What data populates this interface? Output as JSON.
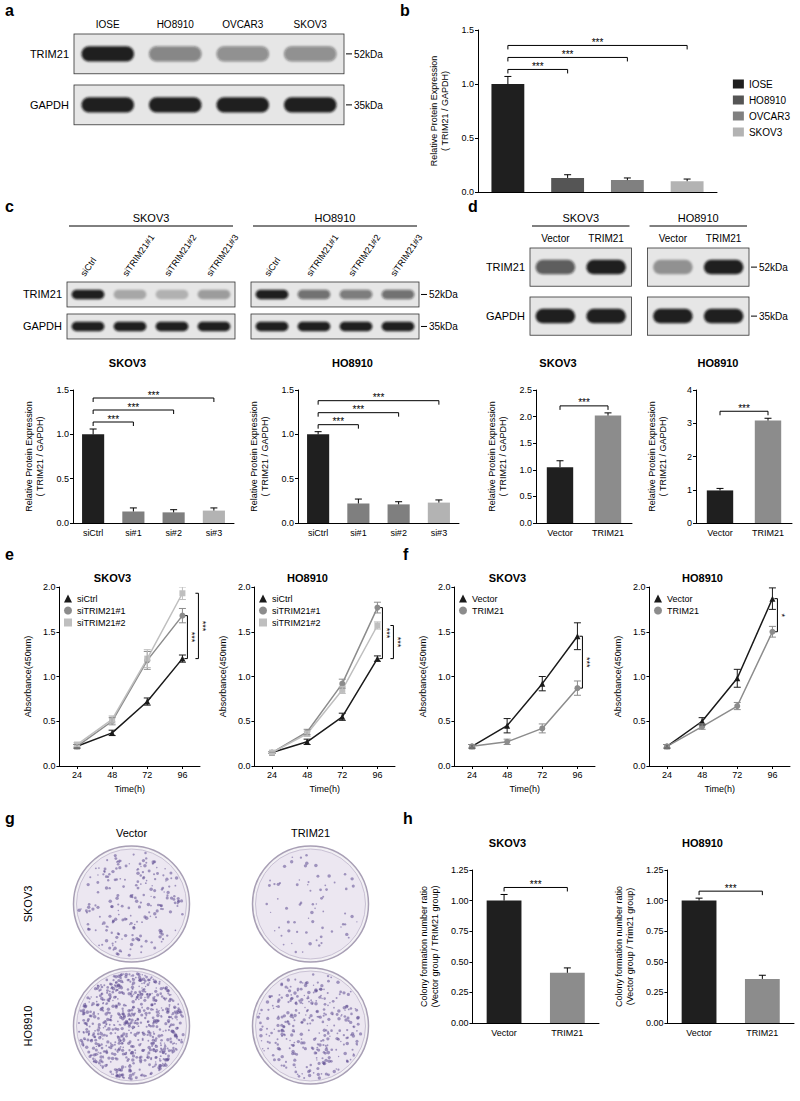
{
  "panel_labels": [
    "a",
    "b",
    "c",
    "d",
    "e",
    "f",
    "g",
    "h"
  ],
  "blots": [
    {
      "groups": [
        {
          "lanes": [
            "IOSE",
            "HO8910",
            "OVCAR3",
            "SKOV3"
          ]
        }
      ],
      "rows": [
        {
          "label": "TRIM21",
          "kda": "52kDa",
          "intensity": [
            [
              1,
              0.5,
              0.45,
              0.45
            ]
          ]
        },
        {
          "label": "GAPDH",
          "kda": "35kDa",
          "intensity": [
            [
              1,
              1,
              1,
              1
            ]
          ]
        }
      ]
    },
    {
      "groups": [
        {
          "title": "SKOV3",
          "lanes": [
            "siCtrl",
            "siTRIM21#1",
            "siTRIM21#2",
            "siTRIM21#3"
          ]
        },
        {
          "title": "HO8910",
          "lanes": [
            "siCtrl",
            "siTRIM21#1",
            "siTRIM21#2",
            "siTRIM21#3"
          ]
        }
      ],
      "rows": [
        {
          "label": "TRIM21",
          "kda": "52kDa",
          "intensity": [
            [
              1,
              0.3,
              0.25,
              0.35
            ],
            [
              1,
              0.6,
              0.55,
              0.6
            ]
          ]
        },
        {
          "label": "GAPDH",
          "kda": "35kDa",
          "intensity": [
            [
              1,
              1,
              1,
              1
            ],
            [
              1,
              1,
              1,
              1
            ]
          ]
        }
      ]
    },
    {
      "groups": [
        {
          "title": "SKOV3",
          "lanes": [
            "Vector",
            "TRIM21"
          ]
        },
        {
          "title": "HO8910",
          "lanes": [
            "Vector",
            "TRIM21"
          ]
        }
      ],
      "rows": [
        {
          "label": "TRIM21",
          "kda": "52kDa",
          "intensity": [
            [
              0.7,
              1
            ],
            [
              0.4,
              1
            ]
          ]
        },
        {
          "label": "GAPDH",
          "kda": "35kDa",
          "intensity": [
            [
              1,
              1
            ],
            [
              1,
              1
            ]
          ]
        }
      ]
    }
  ],
  "colony": {
    "columns": [
      "Vector",
      "TRIM21"
    ],
    "rows": [
      "SKOV3",
      "HO8910"
    ],
    "density": [
      [
        0.3,
        0.1
      ],
      [
        1,
        0.45
      ]
    ]
  },
  "chart_data": [
    {
      "type": "bar",
      "categories": [
        "IOSE",
        "HO8910",
        "OVCAR3",
        "SKOV3"
      ],
      "values": [
        1.0,
        0.13,
        0.11,
        0.1
      ],
      "errors": [
        0.07,
        0.03,
        0.02,
        0.02
      ],
      "colors": [
        "#1f1f1f",
        "#555555",
        "#808080",
        "#b3b3b3"
      ],
      "ylabel": "Relative Protein Expression\n( TRIM21 / GAPDH)",
      "ylim": [
        0,
        1.5
      ],
      "yticks": [
        {
          "value": 0,
          "label": "0.0"
        },
        {
          "value": 0.5,
          "label": "0.5"
        },
        {
          "value": 1,
          "label": "1.0"
        },
        {
          "value": 1.5,
          "label": "1.5"
        }
      ],
      "grid": false,
      "legend": "right",
      "tick_labels": "y",
      "annotations": [
        {
          "text": "***",
          "from": "IOSE",
          "to": "HO8910"
        },
        {
          "text": "***",
          "from": "IOSE",
          "to": "OVCAR3"
        },
        {
          "text": "***",
          "from": "IOSE",
          "to": "SKOV3"
        }
      ]
    },
    {
      "type": "bar",
      "title": "SKOV3",
      "categories": [
        "siCtrl",
        "si#1",
        "si#2",
        "si#3"
      ],
      "values": [
        1.0,
        0.13,
        0.12,
        0.14
      ],
      "errors": [
        0.06,
        0.04,
        0.03,
        0.03
      ],
      "colors": [
        "#1f1f1f",
        "#7f7f7f",
        "#7f7f7f",
        "#b3b3b3"
      ],
      "ylabel": "Relative Protein Expression\n( TRIM21 / GAPDH)",
      "ylim": [
        0,
        1.5
      ],
      "yticks": [
        {
          "value": 0,
          "label": "0.0"
        },
        {
          "value": 0.5,
          "label": "0.5"
        },
        {
          "value": 1,
          "label": "1.0"
        },
        {
          "value": 1.5,
          "label": "1.5"
        }
      ],
      "grid": false,
      "annotations": [
        {
          "text": "***",
          "from": "siCtrl",
          "to": "si#1"
        },
        {
          "text": "***",
          "from": "siCtrl",
          "to": "si#2"
        },
        {
          "text": "***",
          "from": "siCtrl",
          "to": "si#3"
        }
      ]
    },
    {
      "type": "bar",
      "title": "HO8910",
      "categories": [
        "siCtrl",
        "si#1",
        "si#2",
        "si#3"
      ],
      "values": [
        1.0,
        0.22,
        0.21,
        0.23
      ],
      "errors": [
        0.03,
        0.05,
        0.03,
        0.03
      ],
      "colors": [
        "#1f1f1f",
        "#7f7f7f",
        "#7f7f7f",
        "#b3b3b3"
      ],
      "ylabel": "Relative Protein Expression\n( TRIM21 / GAPDH)",
      "ylim": [
        0,
        1.5
      ],
      "yticks": [
        {
          "value": 0,
          "label": "0.0"
        },
        {
          "value": 0.5,
          "label": "0.5"
        },
        {
          "value": 1,
          "label": "1.0"
        },
        {
          "value": 1.5,
          "label": "1.5"
        }
      ],
      "grid": false,
      "annotations": [
        {
          "text": "***",
          "from": "siCtrl",
          "to": "si#1"
        },
        {
          "text": "***",
          "from": "siCtrl",
          "to": "si#2"
        },
        {
          "text": "***",
          "from": "siCtrl",
          "to": "si#3"
        }
      ]
    },
    {
      "type": "bar",
      "title": "SKOV3",
      "categories": [
        "Vector",
        "TRIM21"
      ],
      "values": [
        1.05,
        2.02
      ],
      "errors": [
        0.12,
        0.05
      ],
      "colors": [
        "#1f1f1f",
        "#8c8c8c"
      ],
      "ylabel": "Relative Protein Expression\n( TRIM21 / GAPDH)",
      "ylim": [
        0,
        2.5
      ],
      "yticks": [
        {
          "value": 0,
          "label": "0.0"
        },
        {
          "value": 0.5,
          "label": "0.5"
        },
        {
          "value": 1,
          "label": "1.0"
        },
        {
          "value": 1.5,
          "label": "1.5"
        },
        {
          "value": 2,
          "label": "2.0"
        },
        {
          "value": 2.5,
          "label": "2.5"
        }
      ],
      "grid": false,
      "annotations": [
        {
          "text": "***",
          "from": "Vector",
          "to": "TRIM21"
        }
      ]
    },
    {
      "type": "bar",
      "title": "HO8910",
      "categories": [
        "Vector",
        "TRIM21"
      ],
      "values": [
        0.98,
        3.08
      ],
      "errors": [
        0.06,
        0.07
      ],
      "colors": [
        "#1f1f1f",
        "#8c8c8c"
      ],
      "ylabel": "Relative Protein Expression\n( TRIM21 / GAPDH)",
      "ylim": [
        0,
        4
      ],
      "yticks": [
        0,
        1,
        2,
        3,
        4
      ],
      "grid": false,
      "annotations": [
        {
          "text": "***",
          "from": "Vector",
          "to": "TRIM21"
        }
      ]
    },
    {
      "type": "line",
      "title": "SKOV3",
      "x": [
        24,
        48,
        72,
        96
      ],
      "xlim": [
        12,
        108
      ],
      "xticks": [
        24,
        48,
        72,
        96
      ],
      "xlabel": "Time(h)",
      "ylabel": "Absorbance(450nm)",
      "ylim": [
        0,
        2
      ],
      "yticks": [
        {
          "value": 0,
          "label": "0.0"
        },
        {
          "value": 0.5,
          "label": "0.5"
        },
        {
          "value": 1,
          "label": "1.0"
        },
        {
          "value": 1.5,
          "label": "1.5"
        },
        {
          "value": 2,
          "label": "2.0"
        }
      ],
      "grid": false,
      "legend": "upper left",
      "series": [
        {
          "name": "siCtrl",
          "color": "#1a1a1a",
          "marker": "triangle",
          "values": [
            0.22,
            0.37,
            0.72,
            1.2
          ],
          "errors": [
            0.02,
            0.03,
            0.04,
            0.04
          ]
        },
        {
          "name": "siTRIM21#1",
          "color": "#8c8c8c",
          "marker": "circle",
          "values": [
            0.22,
            0.5,
            1.18,
            1.68
          ],
          "errors": [
            0.02,
            0.04,
            0.1,
            0.08
          ]
        },
        {
          "name": "siTRIM21#2",
          "color": "#bfbfbf",
          "marker": "square",
          "values": [
            0.24,
            0.52,
            1.2,
            1.93
          ],
          "errors": [
            0.02,
            0.04,
            0.1,
            0.07
          ]
        }
      ],
      "annotations": [
        {
          "text": "***",
          "series": [
            "siCtrl",
            "siTRIM21#1"
          ]
        },
        {
          "text": "***",
          "series": [
            "siCtrl",
            "siTRIM21#2"
          ]
        }
      ]
    },
    {
      "type": "line",
      "title": "HO8910",
      "x": [
        24,
        48,
        72,
        96
      ],
      "xlim": [
        12,
        108
      ],
      "xticks": [
        24,
        48,
        72,
        96
      ],
      "xlabel": "Time(h)",
      "ylabel": "Absorbance(450nm)",
      "ylim": [
        0,
        2
      ],
      "yticks": [
        {
          "value": 0,
          "label": "0.0"
        },
        {
          "value": 0.5,
          "label": "0.5"
        },
        {
          "value": 1,
          "label": "1.0"
        },
        {
          "value": 1.5,
          "label": "1.5"
        },
        {
          "value": 2,
          "label": "2.0"
        }
      ],
      "grid": false,
      "legend": "upper left",
      "series": [
        {
          "name": "siCtrl",
          "color": "#1a1a1a",
          "marker": "triangle",
          "values": [
            0.15,
            0.27,
            0.55,
            1.2
          ],
          "errors": [
            0.01,
            0.03,
            0.04,
            0.03
          ]
        },
        {
          "name": "siTRIM21#1",
          "color": "#8c8c8c",
          "marker": "circle",
          "values": [
            0.15,
            0.38,
            0.92,
            1.77
          ],
          "errors": [
            0.01,
            0.03,
            0.05,
            0.06
          ]
        },
        {
          "name": "siTRIM21#2",
          "color": "#bfbfbf",
          "marker": "square",
          "values": [
            0.15,
            0.36,
            0.85,
            1.57
          ],
          "errors": [
            0.01,
            0.03,
            0.04,
            0.04
          ]
        }
      ],
      "annotations": [
        {
          "text": "***",
          "series": [
            "siCtrl",
            "siTRIM21#1"
          ]
        },
        {
          "text": "***",
          "series": [
            "siCtrl",
            "siTRIM21#2"
          ]
        }
      ]
    },
    {
      "type": "line",
      "title": "SKOV3",
      "x": [
        24,
        48,
        72,
        96
      ],
      "xlim": [
        12,
        108
      ],
      "xticks": [
        24,
        48,
        72,
        96
      ],
      "xlabel": "Time(h)",
      "ylabel": "Absorbance(450nm)",
      "ylim": [
        0,
        2
      ],
      "yticks": [
        {
          "value": 0,
          "label": "0.0"
        },
        {
          "value": 0.5,
          "label": "0.5"
        },
        {
          "value": 1,
          "label": "1.0"
        },
        {
          "value": 1.5,
          "label": "1.5"
        },
        {
          "value": 2,
          "label": "2.0"
        }
      ],
      "grid": false,
      "legend": "upper left",
      "series": [
        {
          "name": "Vector",
          "color": "#1a1a1a",
          "marker": "triangle",
          "values": [
            0.22,
            0.45,
            0.92,
            1.45
          ],
          "errors": [
            0.02,
            0.08,
            0.08,
            0.15
          ]
        },
        {
          "name": "TRIM21",
          "color": "#8c8c8c",
          "marker": "circle",
          "values": [
            0.22,
            0.27,
            0.42,
            0.87
          ],
          "errors": [
            0.02,
            0.03,
            0.05,
            0.08
          ]
        }
      ],
      "annotations": [
        {
          "text": "***",
          "series": [
            "Vector",
            "TRIM21"
          ]
        }
      ]
    },
    {
      "type": "line",
      "title": "HO8910",
      "x": [
        24,
        48,
        72,
        96
      ],
      "xlim": [
        12,
        108
      ],
      "xticks": [
        24,
        48,
        72,
        96
      ],
      "xlabel": "Time(h)",
      "ylabel": "Absorbance(450nm)",
      "ylim": [
        0,
        2
      ],
      "yticks": [
        {
          "value": 0,
          "label": "0.0"
        },
        {
          "value": 0.5,
          "label": "0.5"
        },
        {
          "value": 1,
          "label": "1.0"
        },
        {
          "value": 1.5,
          "label": "1.5"
        },
        {
          "value": 2,
          "label": "2.0"
        }
      ],
      "grid": false,
      "legend": "upper left",
      "series": [
        {
          "name": "Vector",
          "color": "#1a1a1a",
          "marker": "triangle",
          "values": [
            0.22,
            0.5,
            0.98,
            1.87
          ],
          "errors": [
            0.02,
            0.04,
            0.1,
            0.12
          ]
        },
        {
          "name": "TRIM21",
          "color": "#8c8c8c",
          "marker": "circle",
          "values": [
            0.22,
            0.44,
            0.67,
            1.5
          ],
          "errors": [
            0.02,
            0.03,
            0.04,
            0.06
          ]
        }
      ],
      "annotations": [
        {
          "text": "*",
          "series": [
            "Vector",
            "TRIM21"
          ]
        }
      ]
    },
    {
      "type": "bar",
      "title": "SKOV3",
      "categories": [
        "Vector",
        "TRIM21"
      ],
      "values": [
        1.0,
        0.41
      ],
      "errors": [
        0.05,
        0.04
      ],
      "colors": [
        "#1f1f1f",
        "#8c8c8c"
      ],
      "ylabel": "Colony formation number ratio\n(Vector group / TRIM21 group)",
      "ylim": [
        0,
        1.25
      ],
      "yticks": [
        {
          "value": 0,
          "label": "0.00"
        },
        {
          "value": 0.25,
          "label": "0.25"
        },
        {
          "value": 0.5,
          "label": "0.50"
        },
        {
          "value": 0.75,
          "label": "0.75"
        },
        {
          "value": 1,
          "label": "1.00"
        },
        {
          "value": 1.25,
          "label": "1.25"
        }
      ],
      "grid": false,
      "annotations": [
        {
          "text": "***",
          "from": "Vector",
          "to": "TRIM21"
        }
      ]
    },
    {
      "type": "bar",
      "title": "HO8910",
      "categories": [
        "Vector",
        "TRIM21"
      ],
      "values": [
        1.0,
        0.36
      ],
      "errors": [
        0.02,
        0.03
      ],
      "colors": [
        "#1f1f1f",
        "#8c8c8c"
      ],
      "ylabel": "Colony formation number ratio\n(Vector group / Trim21 group)",
      "ylim": [
        0,
        1.25
      ],
      "yticks": [
        {
          "value": 0,
          "label": "0.00"
        },
        {
          "value": 0.25,
          "label": "0.25"
        },
        {
          "value": 0.5,
          "label": "0.50"
        },
        {
          "value": 0.75,
          "label": "0.75"
        },
        {
          "value": 1,
          "label": "1.00"
        },
        {
          "value": 1.25,
          "label": "1.25"
        }
      ],
      "grid": false,
      "annotations": [
        {
          "text": "***",
          "from": "Vector",
          "to": "TRIM21"
        }
      ]
    }
  ]
}
